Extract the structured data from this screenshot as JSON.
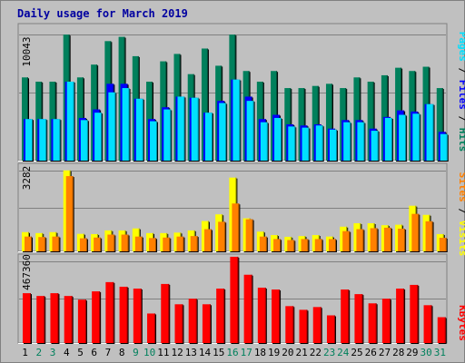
{
  "chart_data": [
    {
      "type": "bar",
      "title": "Daily usage for March 2019",
      "panel": "hits-files-pages",
      "ymax_label": "10043",
      "ylim": [
        0,
        10043
      ],
      "grid": true,
      "categories": [
        "1",
        "2",
        "3",
        "4",
        "5",
        "6",
        "7",
        "8",
        "9",
        "10",
        "11",
        "12",
        "13",
        "14",
        "15",
        "16",
        "17",
        "18",
        "19",
        "20",
        "21",
        "22",
        "23",
        "24",
        "25",
        "26",
        "27",
        "28",
        "29",
        "30",
        "31"
      ],
      "weekend_days": [
        "2",
        "3",
        "9",
        "10",
        "16",
        "17",
        "23",
        "24",
        "30",
        "31"
      ],
      "legend": [
        "Pages",
        "Files",
        "Hits"
      ],
      "series": [
        {
          "name": "Hits",
          "color": "#00805c",
          "values": [
            6630,
            6290,
            6290,
            10040,
            6630,
            7650,
            9520,
            9860,
            8320,
            6290,
            7910,
            8500,
            6890,
            8930,
            7560,
            10040,
            7140,
            6290,
            7140,
            5780,
            5780,
            5950,
            6120,
            5780,
            6630,
            6290,
            6800,
            7400,
            7140,
            7480,
            5780
          ]
        },
        {
          "name": "Files",
          "color": "#0000ff",
          "values": [
            3310,
            3310,
            3310,
            6290,
            3400,
            4080,
            6120,
            6120,
            4930,
            3310,
            4250,
            5100,
            5010,
            3820,
            4760,
            6460,
            5100,
            3310,
            3650,
            2890,
            2800,
            2890,
            2550,
            3230,
            3230,
            2550,
            3480,
            4000,
            3910,
            4500,
            2290
          ]
        },
        {
          "name": "Pages",
          "color": "#00e0ff",
          "values": [
            3310,
            3310,
            3310,
            6290,
            3230,
            3820,
            5440,
            5780,
            4930,
            3140,
            4080,
            5100,
            5010,
            3820,
            4590,
            6460,
            4760,
            3060,
            3400,
            2720,
            2630,
            2800,
            2470,
            3060,
            3060,
            2380,
            3400,
            3650,
            3740,
            4500,
            2120
          ]
        }
      ]
    },
    {
      "type": "bar",
      "panel": "sites-visits",
      "ymax_label": "3282",
      "ylim": [
        0,
        3282
      ],
      "grid": true,
      "legend": [
        "Sites",
        "Visits"
      ],
      "series": [
        {
          "name": "Visits",
          "color": "#ffff00",
          "values": [
            780,
            740,
            780,
            3282,
            710,
            700,
            850,
            850,
            930,
            740,
            740,
            760,
            850,
            1230,
            1500,
            2990,
            1340,
            800,
            660,
            590,
            620,
            660,
            600,
            1000,
            1140,
            1140,
            1060,
            1080,
            1850,
            1480,
            700
          ]
        },
        {
          "name": "Sites",
          "color": "#ff8000",
          "values": [
            600,
            580,
            600,
            3050,
            530,
            560,
            680,
            680,
            600,
            540,
            560,
            600,
            620,
            900,
            1200,
            1940,
            1300,
            600,
            500,
            460,
            500,
            500,
            500,
            820,
            900,
            940,
            960,
            920,
            1520,
            1220,
            550
          ]
        }
      ]
    },
    {
      "type": "bar",
      "panel": "kbytes",
      "ymax_label": "467360",
      "ylim": [
        0,
        467360
      ],
      "grid": true,
      "legend": [
        "KBytes"
      ],
      "series": [
        {
          "name": "KBytes",
          "color": "#ff0000",
          "values": [
            270000,
            255000,
            270000,
            255000,
            235000,
            280000,
            330000,
            305000,
            295000,
            160000,
            320000,
            210000,
            240000,
            210000,
            295000,
            467360,
            370000,
            300000,
            290000,
            200000,
            180000,
            195000,
            150000,
            290000,
            265000,
            215000,
            240000,
            295000,
            315000,
            205000,
            140000
          ]
        }
      ]
    }
  ]
}
